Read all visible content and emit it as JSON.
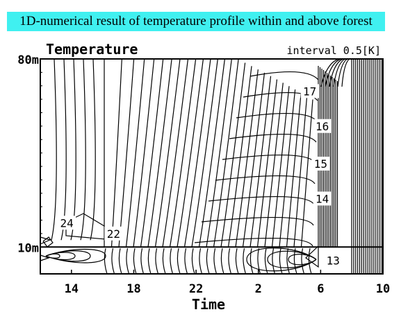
{
  "banner": {
    "text": "1D-numerical result of temperature profile within and above forest",
    "background": "#40f0f0"
  },
  "chart_data": {
    "type": "contour",
    "title": "Temperature",
    "annotation": "interval 0.5[K]",
    "xlabel": "Time",
    "ylabel": "",
    "x_ticks": [
      "14",
      "18",
      "22",
      "2",
      "6",
      "10"
    ],
    "x_tick_hours_elapsed": [
      2,
      6,
      10,
      14,
      18,
      22
    ],
    "x_range_hours_elapsed": [
      0,
      22
    ],
    "y_ticks": [
      "10m",
      "80m"
    ],
    "y_tick_values_m": [
      10,
      80
    ],
    "y_range_m": [
      0,
      80
    ],
    "canopy_top_m": 10,
    "contour_interval_K": 0.5,
    "contour_labels": [
      {
        "text": "24",
        "time_hours_elapsed": 1.7,
        "height_m": 18
      },
      {
        "text": "22",
        "time_hours_elapsed": 4.7,
        "height_m": 14
      },
      {
        "text": "17",
        "time_hours_elapsed": 17.3,
        "height_m": 67
      },
      {
        "text": "16",
        "time_hours_elapsed": 18.1,
        "height_m": 54
      },
      {
        "text": "15",
        "time_hours_elapsed": 18.0,
        "height_m": 40
      },
      {
        "text": "14",
        "time_hours_elapsed": 18.1,
        "height_m": 27
      },
      {
        "text": "13",
        "time_hours_elapsed": 18.8,
        "height_m": 4
      }
    ],
    "grid": false,
    "line_color": "#000000"
  }
}
